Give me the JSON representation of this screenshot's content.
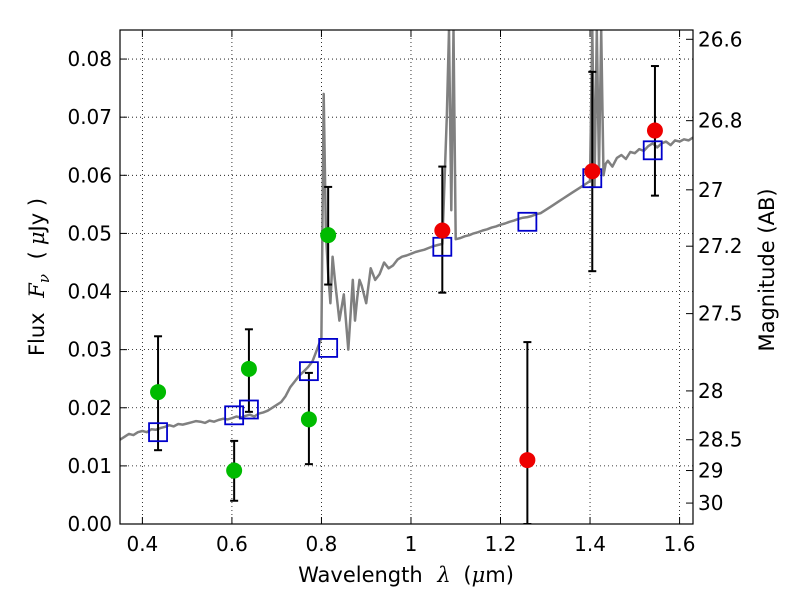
{
  "chart_data": {
    "type": "scatter",
    "title": "",
    "xlabel_text": "Wavelength",
    "xlabel_symbol": "λ",
    "xlabel_unit_open": "(",
    "xlabel_unit_mu": "μ",
    "xlabel_unit_rest": "m)",
    "ylabel_text": "Flux",
    "ylabel_symbol": "F",
    "ylabel_subscript": "ν",
    "ylabel_unit_open": "(",
    "ylabel_unit_mu": "μ",
    "ylabel_unit_rest": "Jy )",
    "y2label": "Magnitude (AB)",
    "xlim": [
      0.35,
      1.63
    ],
    "ylim": [
      0.0,
      0.085
    ],
    "xticks": [
      0.4,
      0.6,
      0.8,
      1.0,
      1.2,
      1.4,
      1.6
    ],
    "xtick_labels": [
      "0.4",
      "0.6",
      "0.8",
      "1",
      "1.2",
      "1.4",
      "1.6"
    ],
    "yticks": [
      0.0,
      0.01,
      0.02,
      0.03,
      0.04,
      0.05,
      0.06,
      0.07,
      0.08
    ],
    "ytick_labels": [
      "0.00",
      "0.01",
      "0.02",
      "0.03",
      "0.04",
      "0.05",
      "0.06",
      "0.07",
      "0.08"
    ],
    "y2ticks": [
      {
        "flux": 0.0834,
        "label": "26.6"
      },
      {
        "flux": 0.0694,
        "label": "26.8"
      },
      {
        "flux": 0.0575,
        "label": "27"
      },
      {
        "flux": 0.0478,
        "label": "27.2"
      },
      {
        "flux": 0.0362,
        "label": "27.5"
      },
      {
        "flux": 0.0229,
        "label": "28"
      },
      {
        "flux": 0.0145,
        "label": "28.5"
      },
      {
        "flux": 0.0092,
        "label": "29"
      },
      {
        "flux": 0.0036,
        "label": "30"
      }
    ],
    "grid": true,
    "colors": {
      "spectrum": "#808080",
      "model": "#0000cc",
      "green": "#00bb00",
      "red": "#ee0000",
      "errorbar": "#000000"
    },
    "series": [
      {
        "kind": "spectrum",
        "x": [
          0.35,
          0.36,
          0.37,
          0.38,
          0.39,
          0.4,
          0.41,
          0.42,
          0.43,
          0.44,
          0.45,
          0.46,
          0.47,
          0.48,
          0.49,
          0.5,
          0.51,
          0.52,
          0.53,
          0.54,
          0.55,
          0.56,
          0.57,
          0.58,
          0.59,
          0.6,
          0.61,
          0.62,
          0.63,
          0.64,
          0.65,
          0.66,
          0.67,
          0.68,
          0.69,
          0.7,
          0.71,
          0.72,
          0.73,
          0.74,
          0.75,
          0.76,
          0.77,
          0.78,
          0.79,
          0.8,
          0.805,
          0.81,
          0.815,
          0.82,
          0.825,
          0.83,
          0.84,
          0.85,
          0.86,
          0.87,
          0.875,
          0.88,
          0.885,
          0.89,
          0.9,
          0.91,
          0.92,
          0.93,
          0.94,
          0.95,
          0.96,
          0.97,
          0.98,
          0.99,
          1.0,
          1.01,
          1.02,
          1.03,
          1.04,
          1.05,
          1.06,
          1.07,
          1.08,
          1.085,
          1.09,
          1.095,
          1.1,
          1.11,
          1.12,
          1.13,
          1.14,
          1.15,
          1.16,
          1.17,
          1.18,
          1.19,
          1.2,
          1.21,
          1.22,
          1.23,
          1.24,
          1.25,
          1.26,
          1.27,
          1.28,
          1.29,
          1.3,
          1.31,
          1.32,
          1.33,
          1.34,
          1.35,
          1.36,
          1.37,
          1.38,
          1.39,
          1.4,
          1.405,
          1.41,
          1.415,
          1.42,
          1.425,
          1.43,
          1.435,
          1.44,
          1.45,
          1.46,
          1.47,
          1.48,
          1.49,
          1.5,
          1.51,
          1.52,
          1.53,
          1.54,
          1.55,
          1.56,
          1.57,
          1.58,
          1.59,
          1.6,
          1.61,
          1.62,
          1.63
        ],
        "y": [
          0.0145,
          0.015,
          0.0155,
          0.0153,
          0.0158,
          0.016,
          0.0158,
          0.0163,
          0.0162,
          0.0165,
          0.0167,
          0.017,
          0.0168,
          0.0172,
          0.0171,
          0.0173,
          0.0175,
          0.0177,
          0.0176,
          0.0174,
          0.0178,
          0.0176,
          0.0179,
          0.0181,
          0.018,
          0.0182,
          0.0185,
          0.0183,
          0.0186,
          0.0188,
          0.0185,
          0.019,
          0.0192,
          0.0195,
          0.02,
          0.0205,
          0.021,
          0.022,
          0.0235,
          0.0245,
          0.0255,
          0.0262,
          0.027,
          0.028,
          0.03,
          0.032,
          0.074,
          0.05,
          0.043,
          0.038,
          0.046,
          0.042,
          0.035,
          0.0395,
          0.03,
          0.042,
          0.035,
          0.039,
          0.042,
          0.041,
          0.038,
          0.044,
          0.042,
          0.043,
          0.045,
          0.044,
          0.0445,
          0.0455,
          0.046,
          0.0462,
          0.0465,
          0.0468,
          0.047,
          0.0472,
          0.0475,
          0.0478,
          0.048,
          0.0482,
          0.07,
          0.085,
          0.054,
          0.085,
          0.049,
          0.0492,
          0.0495,
          0.0497,
          0.05,
          0.0502,
          0.0505,
          0.0507,
          0.051,
          0.0512,
          0.0515,
          0.0517,
          0.052,
          0.0522,
          0.0525,
          0.0527,
          0.0528,
          0.053,
          0.0533,
          0.0535,
          0.054,
          0.0545,
          0.055,
          0.0555,
          0.056,
          0.0565,
          0.057,
          0.0575,
          0.058,
          0.0585,
          0.059,
          0.085,
          0.058,
          0.085,
          0.061,
          0.085,
          0.06,
          0.062,
          0.0625,
          0.0615,
          0.063,
          0.0635,
          0.0628,
          0.064,
          0.0638,
          0.0645,
          0.0642,
          0.065,
          0.0655,
          0.0648,
          0.0655,
          0.0658,
          0.0652,
          0.066,
          0.0658,
          0.0662,
          0.066,
          0.0665
        ]
      },
      {
        "kind": "model",
        "name": "",
        "points": [
          {
            "x": 0.435,
            "y": 0.0158
          },
          {
            "x": 0.605,
            "y": 0.0187
          },
          {
            "x": 0.638,
            "y": 0.0197
          },
          {
            "x": 0.772,
            "y": 0.0263
          },
          {
            "x": 0.815,
            "y": 0.0303
          },
          {
            "x": 1.07,
            "y": 0.0477
          },
          {
            "x": 1.26,
            "y": 0.052
          },
          {
            "x": 1.405,
            "y": 0.0595
          },
          {
            "x": 1.54,
            "y": 0.0643
          }
        ]
      },
      {
        "kind": "green",
        "name": "",
        "points": [
          {
            "x": 0.435,
            "y": 0.0227,
            "lo": 0.0127,
            "hi": 0.0323
          },
          {
            "x": 0.605,
            "y": 0.0092,
            "lo": 0.004,
            "hi": 0.0143
          },
          {
            "x": 0.638,
            "y": 0.0267,
            "lo": 0.0193,
            "hi": 0.0335
          },
          {
            "x": 0.772,
            "y": 0.018,
            "lo": 0.0103,
            "hi": 0.026
          },
          {
            "x": 0.815,
            "y": 0.0497,
            "lo": 0.0412,
            "hi": 0.058
          }
        ]
      },
      {
        "kind": "red",
        "name": "",
        "points": [
          {
            "x": 1.07,
            "y": 0.0505,
            "lo": 0.0398,
            "hi": 0.0615
          },
          {
            "x": 1.26,
            "y": 0.011,
            "lo": 0.0,
            "hi": 0.0313
          },
          {
            "x": 1.405,
            "y": 0.0607,
            "lo": 0.0435,
            "hi": 0.0778
          },
          {
            "x": 1.545,
            "y": 0.0677,
            "lo": 0.0565,
            "hi": 0.0788
          }
        ]
      }
    ]
  }
}
